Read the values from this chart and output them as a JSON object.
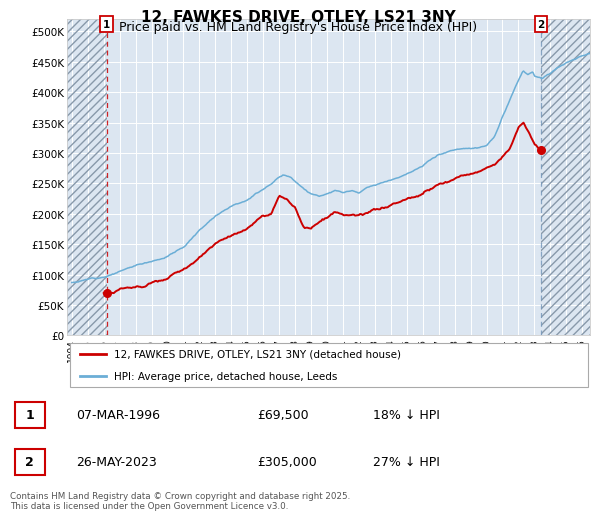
{
  "title": "12, FAWKES DRIVE, OTLEY, LS21 3NY",
  "subtitle": "Price paid vs. HM Land Registry's House Price Index (HPI)",
  "ylim": [
    0,
    520000
  ],
  "yticks": [
    0,
    50000,
    100000,
    150000,
    200000,
    250000,
    300000,
    350000,
    400000,
    450000,
    500000
  ],
  "ytick_labels": [
    "£0",
    "£50K",
    "£100K",
    "£150K",
    "£200K",
    "£250K",
    "£300K",
    "£350K",
    "£400K",
    "£450K",
    "£500K"
  ],
  "xmin": 1993.7,
  "xmax": 2026.5,
  "xticks": [
    1994,
    1995,
    1996,
    1997,
    1998,
    1999,
    2000,
    2001,
    2002,
    2003,
    2004,
    2005,
    2006,
    2007,
    2008,
    2009,
    2010,
    2011,
    2012,
    2013,
    2014,
    2015,
    2016,
    2017,
    2018,
    2019,
    2020,
    2021,
    2022,
    2023,
    2024,
    2025,
    2026
  ],
  "hpi_color": "#6baed6",
  "price_color": "#cc0000",
  "sale1_x": 1996.18,
  "sale1_y": 69500,
  "sale2_x": 2023.4,
  "sale2_y": 305000,
  "plot_bg_color": "#dce6f1",
  "hatch_color": "#b8c8d8",
  "legend_line1": "12, FAWKES DRIVE, OTLEY, LS21 3NY (detached house)",
  "legend_line2": "HPI: Average price, detached house, Leeds",
  "table_row1": [
    "1",
    "07-MAR-1996",
    "£69,500",
    "18% ↓ HPI"
  ],
  "table_row2": [
    "2",
    "26-MAY-2023",
    "£305,000",
    "27% ↓ HPI"
  ],
  "footnote": "Contains HM Land Registry data © Crown copyright and database right 2025.\nThis data is licensed under the Open Government Licence v3.0.",
  "title_fontsize": 11,
  "subtitle_fontsize": 9,
  "annotation_box_color": "#cc0000"
}
